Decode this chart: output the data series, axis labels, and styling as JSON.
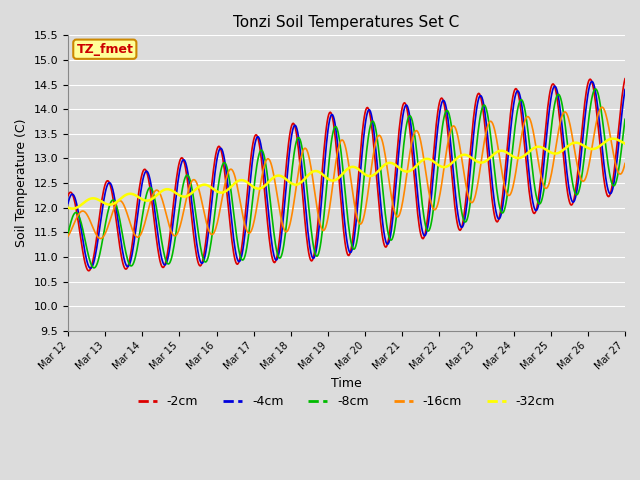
{
  "title": "Tonzi Soil Temperatures Set C",
  "xlabel": "Time",
  "ylabel": "Soil Temperature (C)",
  "ylim": [
    9.5,
    15.5
  ],
  "xlim": [
    0,
    360
  ],
  "bg_color": "#dcdcdc",
  "plot_bg": "#dcdcdc",
  "grid_color": "#ffffff",
  "series": {
    "-2cm": {
      "color": "#dd0000",
      "lw": 1.2
    },
    "-4cm": {
      "color": "#0000dd",
      "lw": 1.2
    },
    "-8cm": {
      "color": "#00bb00",
      "lw": 1.2
    },
    "-16cm": {
      "color": "#ff8800",
      "lw": 1.2
    },
    "-32cm": {
      "color": "#ffff00",
      "lw": 1.8
    }
  },
  "xtick_labels": [
    "Mar 12",
    "Mar 13",
    "Mar 14",
    "Mar 15",
    "Mar 16",
    "Mar 17",
    "Mar 18",
    "Mar 19",
    "Mar 20",
    "Mar 21",
    "Mar 22",
    "Mar 23",
    "Mar 24",
    "Mar 25",
    "Mar 26",
    "Mar 27"
  ],
  "xtick_positions": [
    0,
    24,
    48,
    72,
    96,
    120,
    144,
    168,
    192,
    216,
    240,
    264,
    288,
    312,
    336,
    360
  ],
  "legend_label": "TZ_fmet",
  "legend_box_color": "#ffff99",
  "legend_box_edge": "#cc8800"
}
